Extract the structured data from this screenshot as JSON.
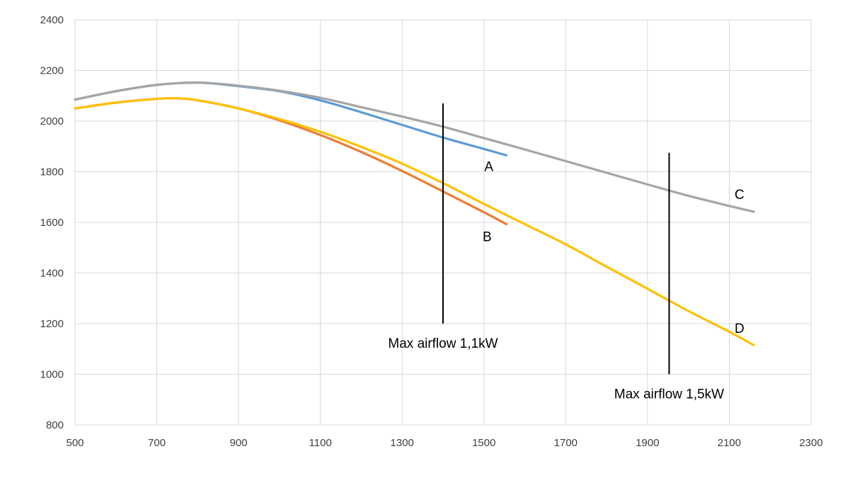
{
  "chart_data": {
    "type": "line",
    "title": "",
    "xlabel": "",
    "ylabel": "",
    "xlim": [
      500,
      2300
    ],
    "ylim": [
      800,
      2400
    ],
    "x_ticks": [
      500,
      700,
      900,
      1100,
      1300,
      1500,
      1700,
      1900,
      2100,
      2300
    ],
    "y_ticks": [
      800,
      1000,
      1200,
      1400,
      1600,
      1800,
      2000,
      2200,
      2400
    ],
    "grid": true,
    "legend": "none",
    "series": [
      {
        "name": "A",
        "color": "#5B9BD5",
        "x": [
          500,
          600,
          700,
          800,
          900,
          1000,
          1100,
          1200,
          1300,
          1400,
          1500,
          1555
        ],
        "y": [
          2085,
          2118,
          2143,
          2152,
          2138,
          2118,
          2082,
          2035,
          1985,
          1935,
          1890,
          1865
        ]
      },
      {
        "name": "B",
        "color": "#ED7D31",
        "x": [
          500,
          600,
          700,
          750,
          800,
          900,
          1000,
          1100,
          1200,
          1300,
          1400,
          1500,
          1555
        ],
        "y": [
          2050,
          2073,
          2088,
          2090,
          2082,
          2050,
          2003,
          1945,
          1878,
          1803,
          1722,
          1640,
          1593
        ]
      },
      {
        "name": "C",
        "color": "#A5A5A5",
        "x": [
          500,
          600,
          700,
          800,
          900,
          1000,
          1100,
          1200,
          1300,
          1400,
          1500,
          1600,
          1700,
          1800,
          1900,
          2000,
          2100,
          2160
        ],
        "y": [
          2085,
          2118,
          2143,
          2152,
          2140,
          2120,
          2092,
          2055,
          2018,
          1978,
          1933,
          1888,
          1842,
          1796,
          1750,
          1705,
          1665,
          1642
        ]
      },
      {
        "name": "D",
        "color": "#FFC000",
        "x": [
          500,
          600,
          700,
          750,
          800,
          900,
          1000,
          1100,
          1200,
          1300,
          1400,
          1500,
          1600,
          1700,
          1800,
          1900,
          2000,
          2100,
          2160
        ],
        "y": [
          2050,
          2073,
          2088,
          2090,
          2082,
          2050,
          2008,
          1958,
          1898,
          1832,
          1755,
          1673,
          1593,
          1513,
          1425,
          1338,
          1250,
          1168,
          1115
        ]
      }
    ],
    "series_labels": [
      {
        "text": "A",
        "x": 1512,
        "y": 1822
      },
      {
        "text": "B",
        "x": 1508,
        "y": 1545
      },
      {
        "text": "C",
        "x": 2125,
        "y": 1712
      },
      {
        "text": "D",
        "x": 2125,
        "y": 1183
      }
    ],
    "reference_lines": [
      {
        "x": 1400,
        "y_from": 1200,
        "y_to": 2070,
        "label": "Max airflow 1,1kW",
        "label_x": 1400,
        "label_y": 1125
      },
      {
        "x": 1953,
        "y_from": 1000,
        "y_to": 1875,
        "label": "Max airflow 1,5kW",
        "label_x": 1953,
        "label_y": 925
      }
    ]
  }
}
